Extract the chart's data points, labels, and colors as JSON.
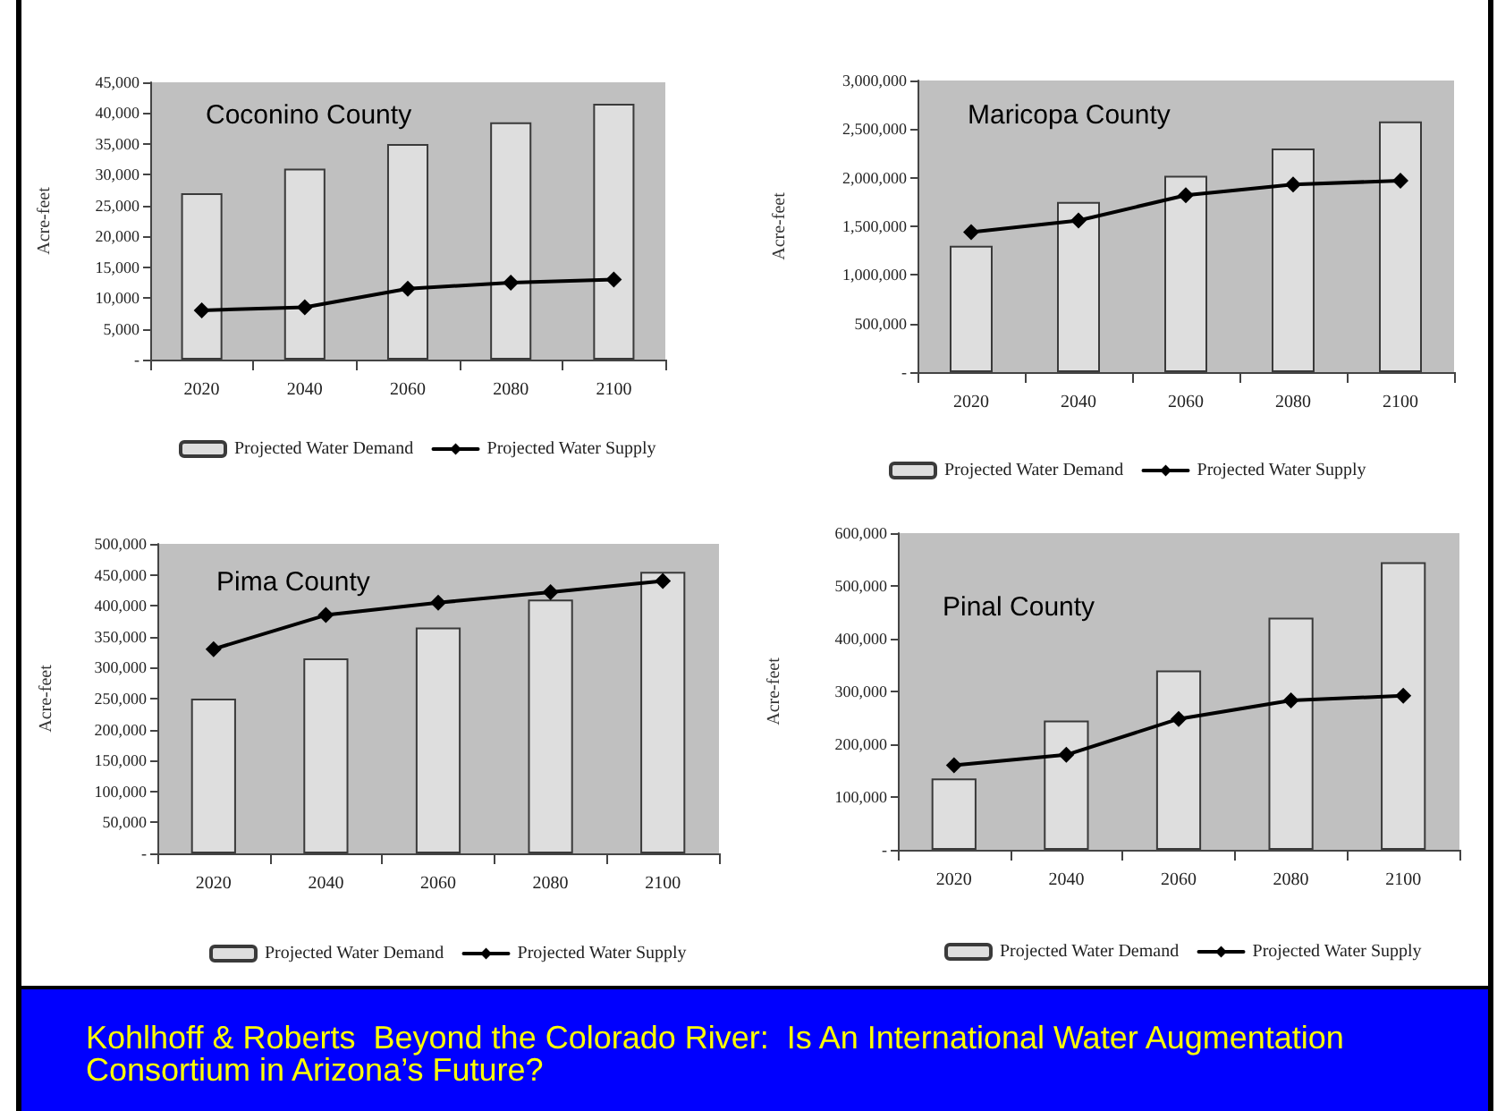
{
  "chart_data": [
    {
      "type": "bar",
      "title": "Coconino County",
      "ylabel": "Acre-feet",
      "categories": [
        "2020",
        "2040",
        "2060",
        "2080",
        "2100"
      ],
      "series": [
        {
          "name": "Projected Water Demand",
          "type": "bar",
          "color": "#dedede",
          "values": [
            27000,
            31000,
            35000,
            38500,
            41500
          ]
        },
        {
          "name": "Projected Water Supply",
          "type": "line",
          "color": "#000000",
          "values": [
            8000,
            8500,
            11500,
            12500,
            13000
          ]
        }
      ],
      "marker": "diamond",
      "ylim": [
        0,
        45000
      ],
      "yticks": [
        {
          "value": 0,
          "label": "-"
        },
        {
          "value": 5000,
          "label": "5,000"
        },
        {
          "value": 10000,
          "label": "10,000"
        },
        {
          "value": 15000,
          "label": "15,000"
        },
        {
          "value": 20000,
          "label": "20,000"
        },
        {
          "value": 25000,
          "label": "25,000"
        },
        {
          "value": 30000,
          "label": "30,000"
        },
        {
          "value": 35000,
          "label": "35,000"
        },
        {
          "value": 40000,
          "label": "40,000"
        },
        {
          "value": 45000,
          "label": "45,000"
        }
      ],
      "legend": "bottom"
    },
    {
      "type": "bar",
      "title": "Maricopa County",
      "ylabel": "Acre-feet",
      "categories": [
        "2020",
        "2040",
        "2060",
        "2080",
        "2100"
      ],
      "series": [
        {
          "name": "Projected Water Demand",
          "type": "bar",
          "color": "#dedede",
          "values": [
            1300000,
            1750000,
            2020000,
            2300000,
            2580000
          ]
        },
        {
          "name": "Projected Water Supply",
          "type": "line",
          "color": "#000000",
          "values": [
            1440000,
            1560000,
            1820000,
            1930000,
            1970000
          ]
        }
      ],
      "marker": "diamond",
      "ylim": [
        0,
        3000000
      ],
      "yticks": [
        {
          "value": 0,
          "label": "-"
        },
        {
          "value": 500000,
          "label": "500,000"
        },
        {
          "value": 1000000,
          "label": "1,000,000"
        },
        {
          "value": 1500000,
          "label": "1,500,000"
        },
        {
          "value": 2000000,
          "label": "2,000,000"
        },
        {
          "value": 2500000,
          "label": "2,500,000"
        },
        {
          "value": 3000000,
          "label": "3,000,000"
        }
      ],
      "legend": "bottom"
    },
    {
      "type": "bar",
      "title": "Pima County",
      "ylabel": "Acre-feet",
      "categories": [
        "2020",
        "2040",
        "2060",
        "2080",
        "2100"
      ],
      "series": [
        {
          "name": "Projected Water Demand",
          "type": "bar",
          "color": "#dedede",
          "values": [
            250000,
            315000,
            365000,
            410000,
            455000
          ]
        },
        {
          "name": "Projected Water Supply",
          "type": "line",
          "color": "#000000",
          "values": [
            330000,
            385000,
            405000,
            422000,
            440000
          ]
        }
      ],
      "marker": "diamond",
      "ylim": [
        0,
        500000
      ],
      "yticks": [
        {
          "value": 0,
          "label": "-"
        },
        {
          "value": 50000,
          "label": "50,000"
        },
        {
          "value": 100000,
          "label": "100,000"
        },
        {
          "value": 150000,
          "label": "150,000"
        },
        {
          "value": 200000,
          "label": "200,000"
        },
        {
          "value": 250000,
          "label": "250,000"
        },
        {
          "value": 300000,
          "label": "300,000"
        },
        {
          "value": 350000,
          "label": "350,000"
        },
        {
          "value": 400000,
          "label": "400,000"
        },
        {
          "value": 450000,
          "label": "450,000"
        },
        {
          "value": 500000,
          "label": "500,000"
        }
      ],
      "legend": "bottom"
    },
    {
      "type": "bar",
      "title": "Pinal County",
      "ylabel": "Acre-feet",
      "categories": [
        "2020",
        "2040",
        "2060",
        "2080",
        "2100"
      ],
      "series": [
        {
          "name": "Projected Water Demand",
          "type": "bar",
          "color": "#dedede",
          "values": [
            135000,
            245000,
            340000,
            440000,
            545000
          ]
        },
        {
          "name": "Projected Water Supply",
          "type": "line",
          "color": "#000000",
          "values": [
            160000,
            180000,
            248000,
            283000,
            292000
          ]
        }
      ],
      "marker": "diamond",
      "ylim": [
        0,
        600000
      ],
      "yticks": [
        {
          "value": 0,
          "label": "-"
        },
        {
          "value": 100000,
          "label": "100,000"
        },
        {
          "value": 200000,
          "label": "200,000"
        },
        {
          "value": 300000,
          "label": "300,000"
        },
        {
          "value": 400000,
          "label": "400,000"
        },
        {
          "value": 500000,
          "label": "500,000"
        },
        {
          "value": 600000,
          "label": "600,000"
        }
      ],
      "legend": "bottom"
    },
    {
      "type": "other",
      "annotations": [
        "Kohlhoff & Roberts  Beyond the Colorado River:  Is An International Water Augmentation Consortium in Arizona’s Future?"
      ]
    }
  ]
}
